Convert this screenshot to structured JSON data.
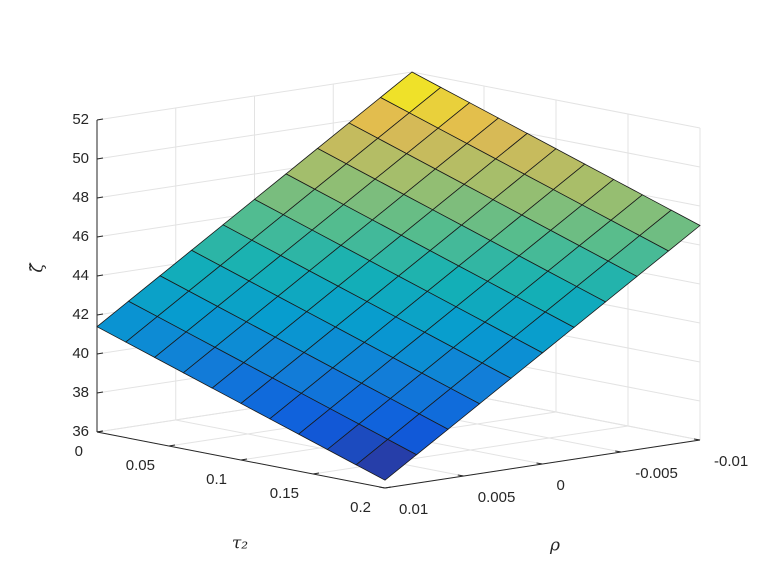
{
  "chart_data": {
    "type": "surface",
    "xlabel": "τ₂",
    "ylabel": "ρ",
    "zlabel": "ζ̃",
    "colormap": "parula",
    "grid": true,
    "x": [
      0,
      0.02,
      0.04,
      0.06,
      0.08,
      0.1,
      0.12,
      0.14,
      0.16,
      0.18,
      0.2
    ],
    "y": [
      -0.01,
      -0.008,
      -0.006,
      -0.004,
      -0.002,
      0,
      0.002,
      0.004,
      0.006,
      0.008,
      0.01
    ],
    "z": [
      [
        52,
        50.94,
        49.88,
        48.82,
        47.76,
        46.7,
        45.64,
        44.58,
        43.52,
        42.46,
        41.4
      ],
      [
        51.5,
        50.44,
        49.38,
        48.32,
        47.26,
        46.2,
        45.14,
        44.08,
        43.02,
        41.96,
        40.9
      ],
      [
        51,
        49.94,
        48.88,
        47.82,
        46.76,
        45.7,
        44.64,
        43.58,
        42.52,
        41.46,
        40.4
      ],
      [
        50.5,
        49.44,
        48.38,
        47.32,
        46.26,
        45.2,
        44.14,
        43.08,
        42.02,
        40.96,
        39.9
      ],
      [
        50,
        48.94,
        47.88,
        46.82,
        45.76,
        44.7,
        43.64,
        42.58,
        41.52,
        40.46,
        39.4
      ],
      [
        49.5,
        48.44,
        47.38,
        46.32,
        45.26,
        44.2,
        43.14,
        42.08,
        41.02,
        39.96,
        38.9
      ],
      [
        49,
        47.94,
        46.88,
        45.82,
        44.76,
        43.7,
        42.64,
        41.58,
        40.52,
        39.46,
        38.4
      ],
      [
        48.5,
        47.44,
        46.38,
        45.32,
        44.26,
        43.2,
        42.14,
        41.08,
        40.02,
        38.96,
        37.9
      ],
      [
        48,
        46.94,
        45.88,
        44.82,
        43.76,
        42.7,
        41.64,
        40.58,
        39.52,
        38.46,
        37.4
      ],
      [
        47.5,
        46.44,
        45.38,
        44.32,
        43.26,
        42.2,
        41.14,
        40.08,
        39.02,
        37.96,
        36.9
      ],
      [
        47,
        45.94,
        44.88,
        43.82,
        42.76,
        41.7,
        40.64,
        39.58,
        38.52,
        37.46,
        36.4
      ]
    ],
    "xlim": [
      0,
      0.2
    ],
    "xticks": [
      0,
      0.05,
      0.1,
      0.15,
      0.2
    ],
    "ylim": [
      -0.01,
      0.01
    ],
    "yticks": [
      -0.01,
      -0.005,
      0,
      0.005,
      0.01
    ],
    "zlim": [
      36,
      52
    ],
    "zticks": [
      36,
      38,
      40,
      42,
      44,
      46,
      48,
      50,
      52
    ]
  }
}
